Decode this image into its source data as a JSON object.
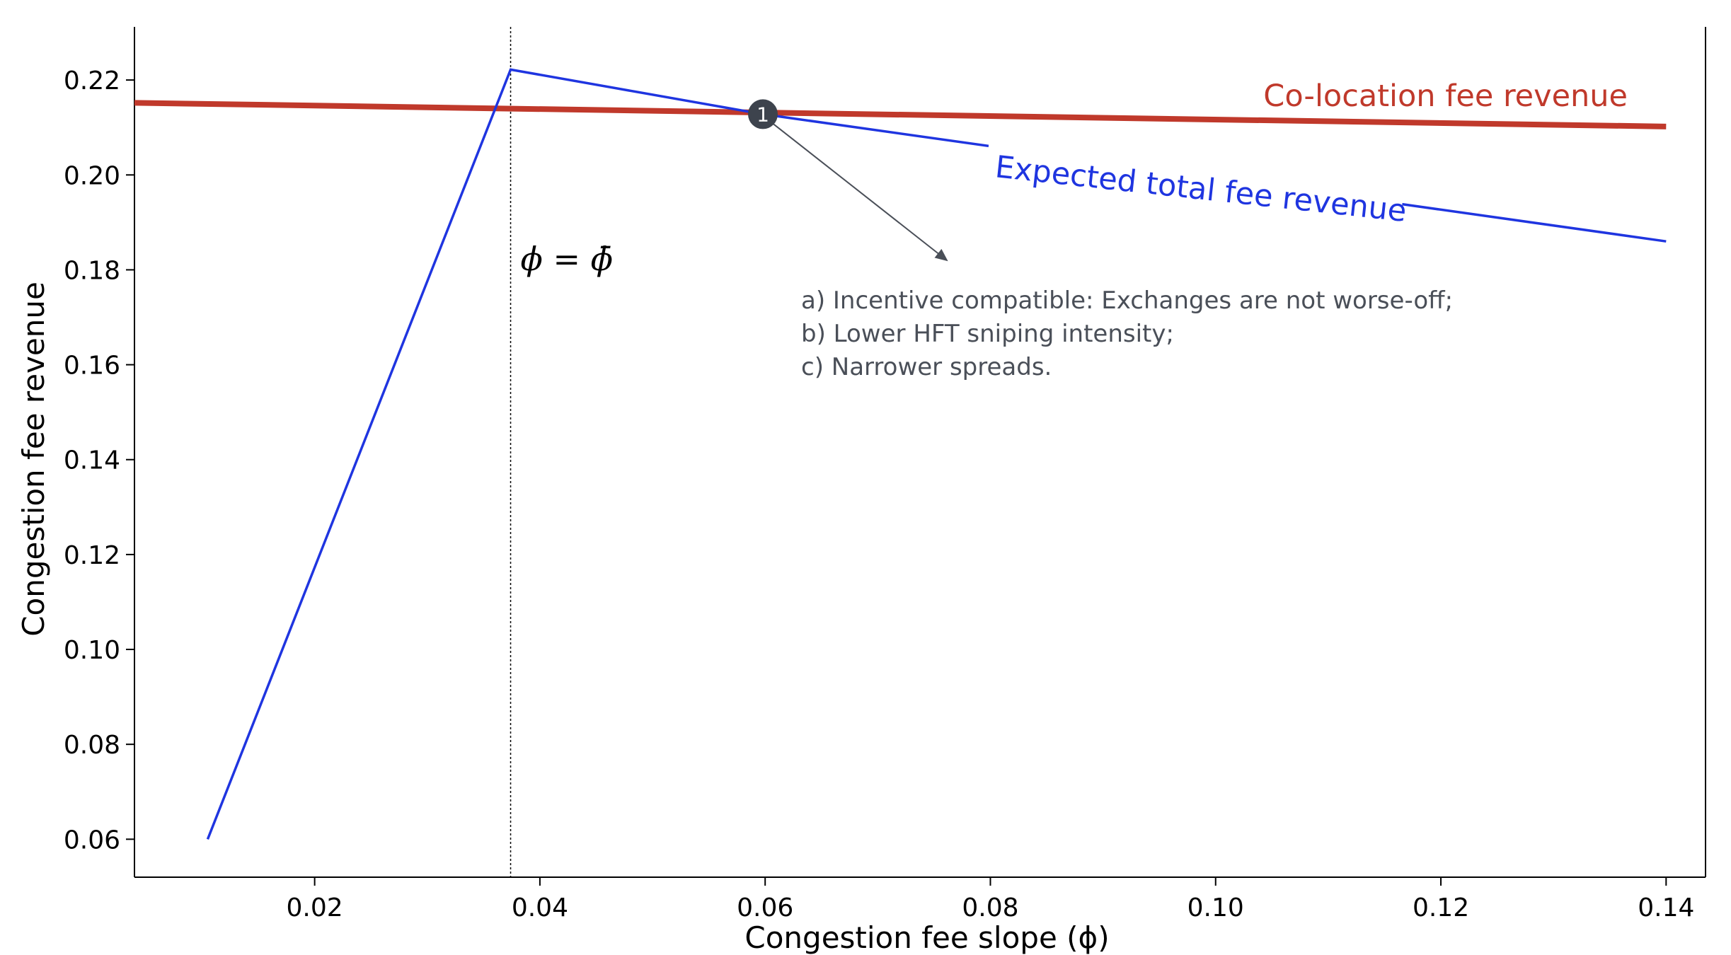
{
  "chart_data": {
    "type": "line",
    "xlabel": "Congestion fee slope (ϕ)",
    "ylabel": "Congestion fee revenue",
    "xlim": [
      0.004,
      0.1435
    ],
    "ylim": [
      0.052,
      0.2312
    ],
    "x_ticks": [
      0.02,
      0.04,
      0.06,
      0.08,
      0.1,
      0.12,
      0.14
    ],
    "x_tick_labels": [
      "0.02",
      "0.04",
      "0.06",
      "0.08",
      "0.10",
      "0.12",
      "0.14"
    ],
    "y_ticks": [
      0.06,
      0.08,
      0.1,
      0.12,
      0.14,
      0.16,
      0.18,
      0.2,
      0.22
    ],
    "y_tick_labels": [
      "0.06",
      "0.08",
      "0.10",
      "0.12",
      "0.14",
      "0.16",
      "0.18",
      "0.20",
      "0.22"
    ],
    "grid": false,
    "series": [
      {
        "name": "Co-location fee revenue",
        "color": "#c0392b",
        "x": [
          0.004,
          0.14
        ],
        "y": [
          0.2152,
          0.2102
        ]
      },
      {
        "name": "Expected total fee revenue",
        "color": "#1f35e0",
        "x": [
          0.0105,
          0.0374,
          0.0598,
          0.14
        ],
        "y": [
          0.06,
          0.2222,
          0.2128,
          0.186
        ]
      }
    ],
    "reference_line": {
      "x": 0.0374,
      "label": "ϕ = ϕ̄"
    },
    "marker": {
      "label": "1",
      "x": 0.0598,
      "y": 0.2128,
      "color": "#3d434d"
    },
    "annotation": {
      "lines": [
        "a) Incentive compatible: Exchanges are not worse-off;",
        "b) Lower HFT sniping intensity;",
        "c) Narrower spreads."
      ],
      "color": "#4a4f58"
    }
  }
}
